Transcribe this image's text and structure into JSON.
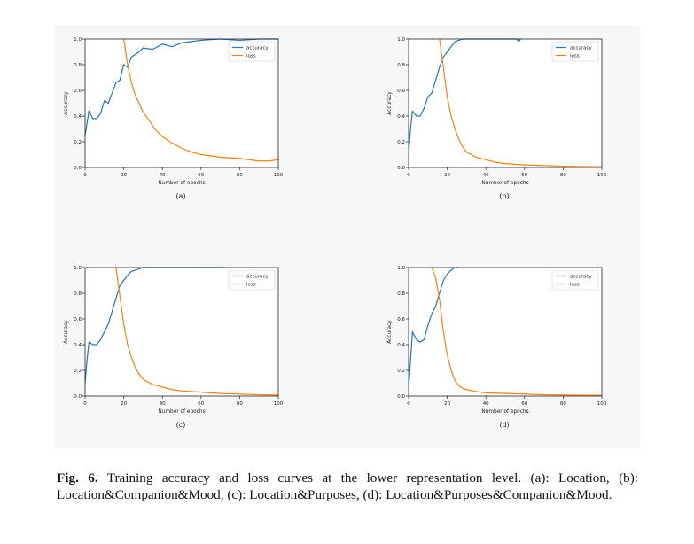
{
  "caption": {
    "label": "Fig. 6.",
    "text": "Training accuracy and loss curves at the lower representation level. (a): Location, (b): Location&Companion&Mood, (c): Location&Purposes, (d): Location&Purposes&Companion&Mood."
  },
  "colors": {
    "accuracy": "#1f77b4",
    "loss": "#ff7f0e"
  },
  "chart_data": [
    {
      "type": "line",
      "sublabel": "(a)",
      "xlabel": "Number of epochs",
      "ylabel": "Accuracy",
      "xlim": [
        0,
        100
      ],
      "ylim": [
        0,
        1
      ],
      "xticks": [
        "0",
        "20",
        "40",
        "60",
        "80",
        "100"
      ],
      "yticks": [
        "0.0",
        "0.2",
        "0.4",
        "0.6",
        "0.8",
        "1.0"
      ],
      "legend_position": "top-right",
      "series": [
        {
          "name": "accuracy",
          "x": [
            0,
            2,
            4,
            6,
            8,
            10,
            12,
            14,
            16,
            18,
            20,
            22,
            24,
            26,
            28,
            30,
            35,
            40,
            45,
            50,
            55,
            60,
            70,
            80,
            90,
            100
          ],
          "y": [
            0.25,
            0.44,
            0.38,
            0.38,
            0.42,
            0.52,
            0.5,
            0.58,
            0.66,
            0.68,
            0.8,
            0.78,
            0.86,
            0.88,
            0.9,
            0.93,
            0.92,
            0.96,
            0.94,
            0.97,
            0.98,
            0.99,
            1.0,
            0.99,
            1.0,
            1.0
          ]
        },
        {
          "name": "loss",
          "x": [
            20,
            22,
            24,
            26,
            28,
            30,
            33,
            36,
            40,
            45,
            50,
            55,
            60,
            70,
            80,
            90,
            95,
            100
          ],
          "y": [
            1.0,
            0.8,
            0.66,
            0.56,
            0.5,
            0.43,
            0.37,
            0.3,
            0.24,
            0.19,
            0.15,
            0.12,
            0.1,
            0.08,
            0.07,
            0.05,
            0.05,
            0.06
          ]
        }
      ]
    },
    {
      "type": "line",
      "sublabel": "(b)",
      "xlabel": "Number of epochs",
      "ylabel": "Accuracy",
      "xlim": [
        0,
        100
      ],
      "ylim": [
        0,
        1
      ],
      "xticks": [
        "0",
        "20",
        "40",
        "60",
        "80",
        "100"
      ],
      "yticks": [
        "0.0",
        "0.2",
        "0.4",
        "0.6",
        "0.8",
        "1.0"
      ],
      "legend_position": "top-right",
      "series": [
        {
          "name": "accuracy",
          "x": [
            0,
            1,
            2,
            4,
            6,
            8,
            10,
            12,
            14,
            16,
            18,
            20,
            22,
            24,
            26,
            28,
            30,
            40,
            50,
            56,
            57,
            58
          ],
          "y": [
            0.1,
            0.3,
            0.44,
            0.4,
            0.4,
            0.46,
            0.55,
            0.58,
            0.68,
            0.78,
            0.86,
            0.9,
            0.94,
            0.98,
            0.99,
            1.0,
            1.0,
            1.0,
            1.0,
            1.0,
            0.98,
            1.0
          ]
        },
        {
          "name": "loss",
          "x": [
            16,
            18,
            20,
            22,
            24,
            26,
            28,
            30,
            35,
            40,
            45,
            50,
            60,
            70,
            80,
            90,
            100
          ],
          "y": [
            1.0,
            0.78,
            0.55,
            0.4,
            0.3,
            0.22,
            0.16,
            0.12,
            0.08,
            0.06,
            0.04,
            0.03,
            0.02,
            0.015,
            0.01,
            0.008,
            0.005
          ]
        }
      ]
    },
    {
      "type": "line",
      "sublabel": "(c)",
      "xlabel": "Number of epochs",
      "ylabel": "Accuracy",
      "xlim": [
        0,
        100
      ],
      "ylim": [
        0,
        1
      ],
      "xticks": [
        "0",
        "20",
        "40",
        "60",
        "80",
        "100"
      ],
      "yticks": [
        "0.0",
        "0.2",
        "0.4",
        "0.6",
        "0.8",
        "1.0"
      ],
      "legend_position": "top-right",
      "series": [
        {
          "name": "accuracy",
          "x": [
            0,
            1,
            2,
            4,
            6,
            8,
            10,
            12,
            14,
            16,
            18,
            20,
            22,
            24,
            26,
            28,
            30,
            40,
            50,
            60,
            70,
            72
          ],
          "y": [
            0.1,
            0.28,
            0.42,
            0.4,
            0.4,
            0.44,
            0.5,
            0.56,
            0.66,
            0.76,
            0.86,
            0.9,
            0.94,
            0.97,
            0.98,
            0.99,
            1.0,
            1.0,
            1.0,
            1.0,
            1.0,
            1.0
          ]
        },
        {
          "name": "loss",
          "x": [
            16,
            18,
            20,
            22,
            24,
            26,
            28,
            30,
            35,
            40,
            45,
            50,
            60,
            70,
            80,
            90,
            100
          ],
          "y": [
            1.0,
            0.78,
            0.56,
            0.4,
            0.3,
            0.22,
            0.17,
            0.13,
            0.09,
            0.07,
            0.05,
            0.04,
            0.03,
            0.02,
            0.015,
            0.01,
            0.008
          ]
        }
      ]
    },
    {
      "type": "line",
      "sublabel": "(d)",
      "xlabel": "Number of epochs",
      "ylabel": "Accuracy",
      "xlim": [
        0,
        100
      ],
      "ylim": [
        0,
        1
      ],
      "xticks": [
        "0",
        "20",
        "40",
        "60",
        "80",
        "100"
      ],
      "yticks": [
        "0.0",
        "0.2",
        "0.4",
        "0.6",
        "0.8",
        "1.0"
      ],
      "legend_position": "top-right",
      "series": [
        {
          "name": "accuracy",
          "x": [
            0,
            1,
            2,
            4,
            6,
            8,
            10,
            12,
            14,
            16,
            18,
            20,
            22,
            24,
            26
          ],
          "y": [
            0.05,
            0.28,
            0.5,
            0.44,
            0.42,
            0.44,
            0.55,
            0.64,
            0.7,
            0.8,
            0.9,
            0.95,
            0.98,
            1.0,
            1.0
          ]
        },
        {
          "name": "loss",
          "x": [
            12,
            14,
            16,
            18,
            20,
            22,
            24,
            26,
            28,
            30,
            35,
            40,
            50,
            60,
            70,
            80,
            90,
            100
          ],
          "y": [
            1.0,
            0.92,
            0.75,
            0.5,
            0.32,
            0.2,
            0.12,
            0.08,
            0.06,
            0.05,
            0.035,
            0.025,
            0.02,
            0.015,
            0.01,
            0.008,
            0.006,
            0.005
          ]
        }
      ]
    }
  ]
}
